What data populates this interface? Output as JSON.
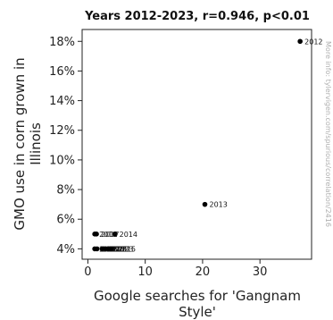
{
  "chart_data": {
    "type": "scatter",
    "title": "Years 2012-2023, r=0.946, p<0.01",
    "xlabel_lines": [
      "Google searches for 'Gangnam",
      "Style'"
    ],
    "ylabel_lines": [
      "GMO use in corn grown in",
      "Illinois"
    ],
    "xlim": [
      -1,
      39
    ],
    "ylim": [
      3.3,
      18.8
    ],
    "xticks": [
      0,
      10,
      20,
      30
    ],
    "xtick_labels": [
      "0",
      "10",
      "20",
      "30"
    ],
    "yticks": [
      4,
      6,
      8,
      10,
      12,
      14,
      16,
      18
    ],
    "ytick_labels": [
      "4%",
      "6%",
      "8%",
      "10%",
      "12%",
      "14%",
      "16%",
      "18%"
    ],
    "points": [
      {
        "label": "2012",
        "x": 37,
        "y": 18
      },
      {
        "label": "2013",
        "x": 20.4,
        "y": 7
      },
      {
        "label": "2014",
        "x": 4.7,
        "y": 5
      },
      {
        "label": "2016",
        "x": 1.2,
        "y": 5
      },
      {
        "label": "2017",
        "x": 1.5,
        "y": 5
      },
      {
        "label": "2015",
        "x": 4.4,
        "y": 4
      },
      {
        "label": "2018",
        "x": 1.2,
        "y": 4
      },
      {
        "label": "2019",
        "x": 1.6,
        "y": 4
      },
      {
        "label": "2020",
        "x": 2.5,
        "y": 4
      },
      {
        "label": "2021",
        "x": 3.0,
        "y": 4
      },
      {
        "label": "2022",
        "x": 3.5,
        "y": 4
      },
      {
        "label": "2023",
        "x": 4.0,
        "y": 4
      }
    ],
    "grid": false,
    "legend": "none"
  },
  "watermark": "More info: tylervigen.com/spurious/correlation/2416"
}
